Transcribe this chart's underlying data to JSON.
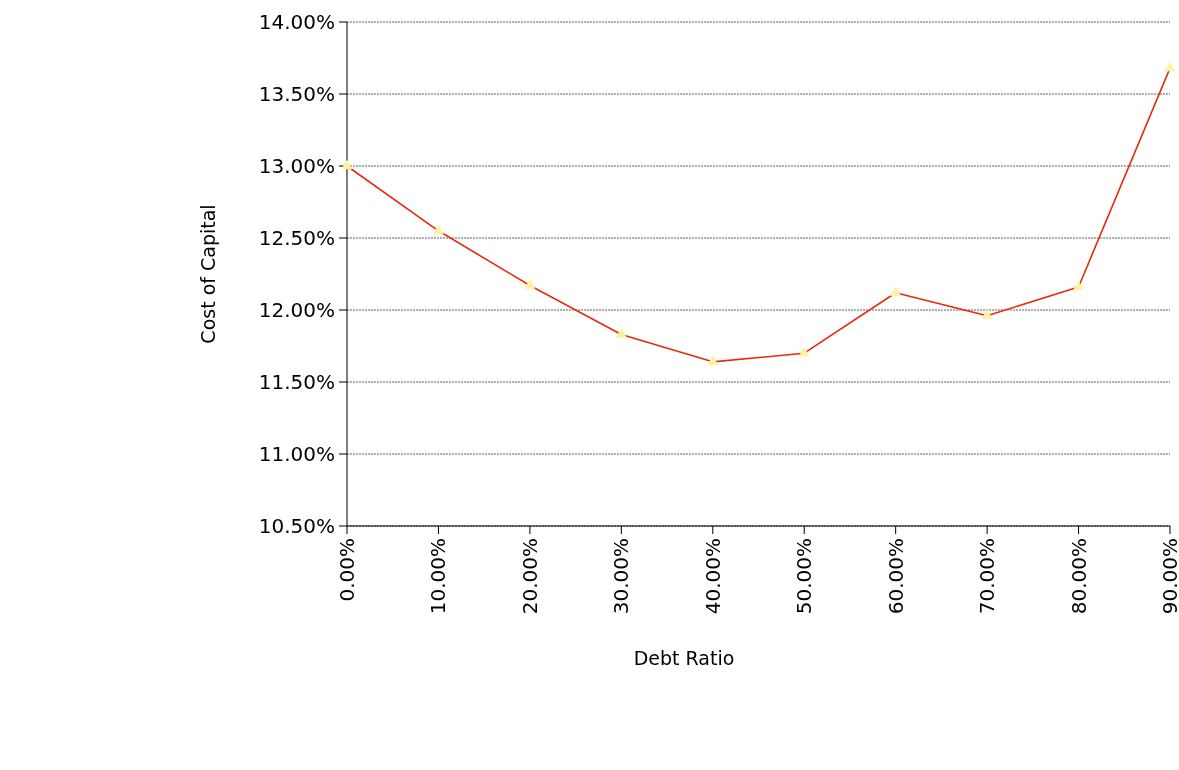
{
  "chart_data": {
    "type": "line",
    "xlabel": "Debt Ratio",
    "ylabel": "Cost of Capital",
    "categories": [
      "0.00%",
      "10.00%",
      "20.00%",
      "30.00%",
      "40.00%",
      "50.00%",
      "60.00%",
      "70.00%",
      "80.00%",
      "90.00%"
    ],
    "series": [
      {
        "color": "#e8290c",
        "values": [
          13.0,
          12.55,
          12.17,
          11.83,
          11.64,
          11.7,
          12.12,
          11.96,
          12.16,
          13.68
        ]
      }
    ],
    "ylim": [
      10.5,
      14
    ],
    "yticks": [
      {
        "value": 10.5,
        "label": "10.50%"
      },
      {
        "value": 11,
        "label": "11.00%"
      },
      {
        "value": 11.5,
        "label": "11.50%"
      },
      {
        "value": 12,
        "label": "12.00%"
      },
      {
        "value": 12.5,
        "label": "12.50%"
      },
      {
        "value": 13,
        "label": "13.00%"
      },
      {
        "value": 13.5,
        "label": "13.50%"
      },
      {
        "value": 14,
        "label": "14.00%"
      }
    ],
    "grid": "y",
    "marker": "triangle",
    "line_style": "solid"
  }
}
